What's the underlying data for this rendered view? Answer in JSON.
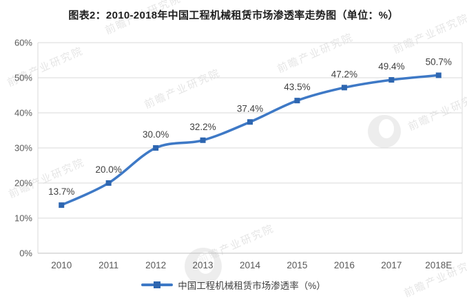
{
  "page": {
    "title": "图表2：2010-2018年中国工程机械租赁市场渗透率走势图（单位：%）"
  },
  "chart_data": {
    "type": "line",
    "title": "图表2：2010-2018年中国工程机械租赁市场渗透率走势图（单位：%）",
    "categories": [
      "2010",
      "2011",
      "2012",
      "2013",
      "2014",
      "2015",
      "2016",
      "2017",
      "2018E"
    ],
    "series": [
      {
        "name": "中国工程机械租赁市场渗透率（%）",
        "values": [
          13.7,
          20.0,
          30.0,
          32.2,
          37.4,
          43.5,
          47.2,
          49.4,
          50.7
        ]
      }
    ],
    "data_labels": [
      "13.7%",
      "20.0%",
      "30.0%",
      "32.2%",
      "37.4%",
      "43.5%",
      "47.2%",
      "49.4%",
      "50.7%"
    ],
    "y_ticks": [
      "0%",
      "10%",
      "20%",
      "30%",
      "40%",
      "50%",
      "60%"
    ],
    "ylim": [
      0,
      60
    ],
    "xlabel": "",
    "ylabel": "",
    "grid": "horizontal",
    "line_style": "smooth",
    "marker": "square",
    "legend_position": "bottom",
    "colors": {
      "line": "#3E79C6",
      "marker": "#2E66B0",
      "grid": "#D9D9D9",
      "axis": "#BFBFBF",
      "tick_text": "#595959",
      "label_text": "#404040",
      "title_text": "#1F1F1F"
    }
  },
  "watermark": {
    "text": "前瞻产业研究院"
  }
}
